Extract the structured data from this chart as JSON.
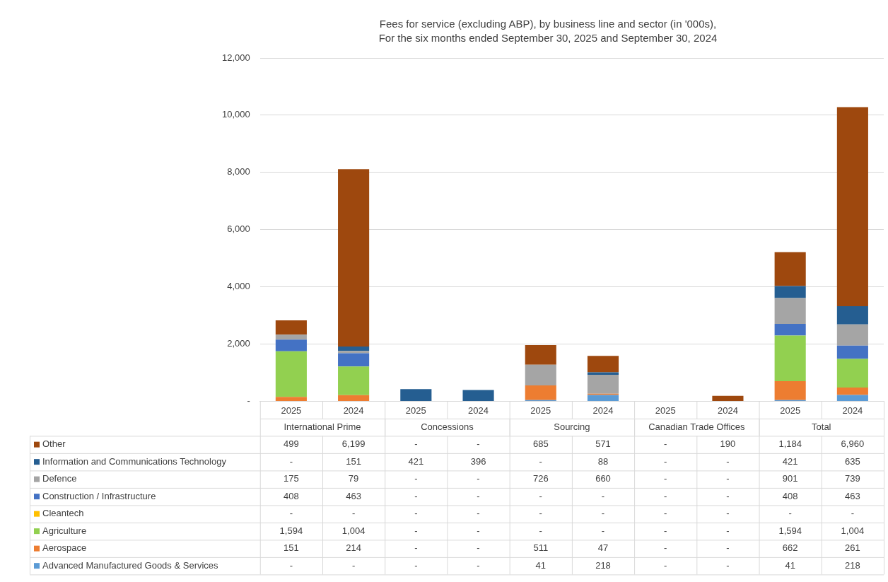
{
  "chart_data": {
    "type": "bar",
    "stacked": true,
    "title": "Fees for service (excluding ABP), by business line and sector (in '000s),",
    "subtitle": "For the six months ended September 30, 2025 and September 30, 2024",
    "categories": [
      "2025",
      "2024",
      "2025",
      "2024",
      "2025",
      "2024",
      "2025",
      "2024",
      "2025",
      "2024"
    ],
    "annotations": [
      "International Prime",
      "Concessions",
      "Sourcing",
      "Canadian Trade Offices",
      "Total"
    ],
    "ylim": [
      0,
      12000
    ],
    "yticks": [
      {
        "value": 0,
        "label": "-"
      },
      {
        "value": 2000,
        "label": "2,000"
      },
      {
        "value": 4000,
        "label": "4,000"
      },
      {
        "value": 6000,
        "label": "6,000"
      },
      {
        "value": 8000,
        "label": "8,000"
      },
      {
        "value": 10000,
        "label": "10,000"
      },
      {
        "value": 12000,
        "label": "12,000"
      }
    ],
    "grid": "y",
    "legend": "bottom",
    "series": [
      {
        "name": "Advanced Manufactured Goods & Services",
        "color": "#5b9bd5",
        "values": [
          0,
          0,
          0,
          0,
          41,
          218,
          0,
          0,
          41,
          218
        ],
        "value_labels": [
          "-",
          "-",
          "-",
          "-",
          "41",
          "218",
          "-",
          "-",
          "41",
          "218"
        ]
      },
      {
        "name": "Aerospace",
        "color": "#ed7d31",
        "values": [
          151,
          214,
          0,
          0,
          511,
          47,
          0,
          0,
          662,
          261
        ],
        "value_labels": [
          "151",
          "214",
          "-",
          "-",
          "511",
          "47",
          "-",
          "-",
          "662",
          "261"
        ]
      },
      {
        "name": "Agriculture",
        "color": "#92d050",
        "values": [
          1594,
          1004,
          0,
          0,
          0,
          0,
          0,
          0,
          1594,
          1004
        ],
        "value_labels": [
          "1,594",
          "1,004",
          "-",
          "-",
          "-",
          "-",
          "-",
          "-",
          "1,594",
          "1,004"
        ]
      },
      {
        "name": "Cleantech",
        "color": "#ffc000",
        "values": [
          0,
          0,
          0,
          0,
          0,
          0,
          0,
          0,
          0,
          0
        ],
        "value_labels": [
          "-",
          "-",
          "-",
          "-",
          "-",
          "-",
          "-",
          "-",
          "-",
          "-"
        ]
      },
      {
        "name": "Construction / Infrastructure",
        "color": "#4472c4",
        "values": [
          408,
          463,
          0,
          0,
          0,
          0,
          0,
          0,
          408,
          463
        ],
        "value_labels": [
          "408",
          "463",
          "-",
          "-",
          "-",
          "-",
          "-",
          "-",
          "408",
          "463"
        ]
      },
      {
        "name": "Defence",
        "color": "#a5a5a5",
        "values": [
          175,
          79,
          0,
          0,
          726,
          660,
          0,
          0,
          901,
          739
        ],
        "value_labels": [
          "175",
          "79",
          "-",
          "-",
          "726",
          "660",
          "-",
          "-",
          "901",
          "739"
        ]
      },
      {
        "name": "Information and Communications Technology",
        "color": "#255e91",
        "values": [
          0,
          151,
          421,
          396,
          0,
          88,
          0,
          0,
          421,
          635
        ],
        "value_labels": [
          "-",
          "151",
          "421",
          "396",
          "-",
          "88",
          "-",
          "-",
          "421",
          "635"
        ]
      },
      {
        "name": "Other",
        "color": "#9e480e",
        "values": [
          499,
          6199,
          0,
          0,
          685,
          571,
          0,
          190,
          1184,
          6960
        ],
        "value_labels": [
          "499",
          "6,199",
          "-",
          "-",
          "685",
          "571",
          "-",
          "190",
          "1,184",
          "6,960"
        ]
      }
    ]
  }
}
